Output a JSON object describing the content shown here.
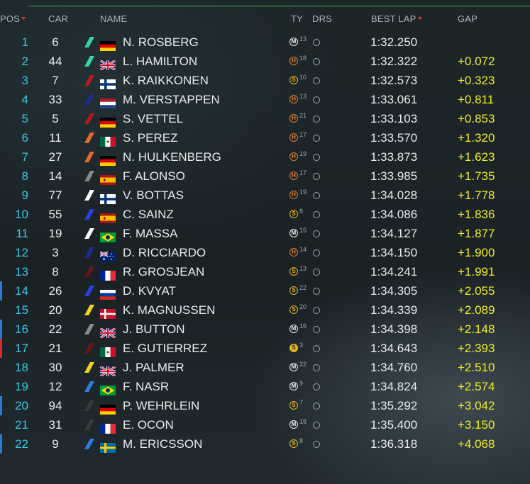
{
  "header": {
    "pos": "POS",
    "car": "CAR",
    "name": "NAME",
    "ty": "TY",
    "drs": "DRS",
    "best_lap": "BEST LAP",
    "gap": "GAP"
  },
  "colors": {
    "pos_text": "#3ec6e0",
    "gap_text": "#f2ec22",
    "header_line": "#3fb35a",
    "sort_arrow": "#e03a3a"
  },
  "rows": [
    {
      "pos": "1",
      "car": "6",
      "name": "N. ROSBERG",
      "flag": "germany-flag",
      "team_color": "#36d3b0",
      "tyre": "M",
      "tyre_laps": "13",
      "best_lap": "1:32.250",
      "gap": "",
      "pit": ""
    },
    {
      "pos": "2",
      "car": "44",
      "name": "L. HAMILTON",
      "flag": "uk-flag",
      "team_color": "#36d3b0",
      "tyre": "H",
      "tyre_laps": "18",
      "best_lap": "1:32.322",
      "gap": "+0.072",
      "pit": ""
    },
    {
      "pos": "3",
      "car": "7",
      "name": "K. RAIKKONEN",
      "flag": "finland-flag",
      "team_color": "#b31b1b",
      "tyre": "S",
      "tyre_laps": "10",
      "best_lap": "1:32.573",
      "gap": "+0.323",
      "pit": ""
    },
    {
      "pos": "4",
      "car": "33",
      "name": "M. VERSTAPPEN",
      "flag": "netherlands-flag",
      "team_color": "#1e2b8f",
      "tyre": "H",
      "tyre_laps": "13",
      "best_lap": "1:33.061",
      "gap": "+0.811",
      "pit": ""
    },
    {
      "pos": "5",
      "car": "5",
      "name": "S. VETTEL",
      "flag": "germany-flag",
      "team_color": "#b31b1b",
      "tyre": "H",
      "tyre_laps": "21",
      "best_lap": "1:33.103",
      "gap": "+0.853",
      "pit": ""
    },
    {
      "pos": "6",
      "car": "11",
      "name": "S. PEREZ",
      "flag": "mexico-flag",
      "team_color": "#e9692c",
      "tyre": "H",
      "tyre_laps": "17",
      "best_lap": "1:33.570",
      "gap": "+1.320",
      "pit": ""
    },
    {
      "pos": "7",
      "car": "27",
      "name": "N. HULKENBERG",
      "flag": "germany-flag",
      "team_color": "#e9692c",
      "tyre": "H",
      "tyre_laps": "19",
      "best_lap": "1:33.873",
      "gap": "+1.623",
      "pit": ""
    },
    {
      "pos": "8",
      "car": "14",
      "name": "F. ALONSO",
      "flag": "spain-flag",
      "team_color": "#8a8a8a",
      "tyre": "H",
      "tyre_laps": "17",
      "best_lap": "1:33.985",
      "gap": "+1.735",
      "pit": ""
    },
    {
      "pos": "9",
      "car": "77",
      "name": "V. BOTTAS",
      "flag": "finland-flag",
      "team_color": "#ffffff",
      "tyre": "H",
      "tyre_laps": "19",
      "best_lap": "1:34.028",
      "gap": "+1.778",
      "pit": ""
    },
    {
      "pos": "10",
      "car": "55",
      "name": "C. SAINZ",
      "flag": "spain-flag",
      "team_color": "#2c3fe0",
      "tyre": "S",
      "tyre_laps": "8",
      "best_lap": "1:34.086",
      "gap": "+1.836",
      "pit": ""
    },
    {
      "pos": "11",
      "car": "19",
      "name": "F. MASSA",
      "flag": "brazil-flag",
      "team_color": "#ffffff",
      "tyre": "M",
      "tyre_laps": "15",
      "best_lap": "1:34.127",
      "gap": "+1.877",
      "pit": ""
    },
    {
      "pos": "12",
      "car": "3",
      "name": "D. RICCIARDO",
      "flag": "australia-flag",
      "team_color": "#1e2b8f",
      "tyre": "H",
      "tyre_laps": "14",
      "best_lap": "1:34.150",
      "gap": "+1.900",
      "pit": ""
    },
    {
      "pos": "13",
      "car": "8",
      "name": "R. GROSJEAN",
      "flag": "france-flag",
      "team_color": "#6d1515",
      "tyre": "S",
      "tyre_laps": "13",
      "best_lap": "1:34.241",
      "gap": "+1.991",
      "pit": ""
    },
    {
      "pos": "14",
      "car": "26",
      "name": "D. KVYAT",
      "flag": "russia-flag",
      "team_color": "#2c3fe0",
      "tyre": "S",
      "tyre_laps": "22",
      "best_lap": "1:34.305",
      "gap": "+2.055",
      "pit": "#2b7bd6"
    },
    {
      "pos": "15",
      "car": "20",
      "name": "K. MAGNUSSEN",
      "flag": "denmark-flag",
      "team_color": "#f5d21e",
      "tyre": "S",
      "tyre_laps": "20",
      "best_lap": "1:34.339",
      "gap": "+2.089",
      "pit": ""
    },
    {
      "pos": "16",
      "car": "22",
      "name": "J. BUTTON",
      "flag": "uk-flag",
      "team_color": "#8a8a8a",
      "tyre": "M",
      "tyre_laps": "16",
      "best_lap": "1:34.398",
      "gap": "+2.148",
      "pit": "#2b7bd6"
    },
    {
      "pos": "17",
      "car": "21",
      "name": "E. GUTIERREZ",
      "flag": "mexico-flag",
      "team_color": "#6d1515",
      "tyre": "S-FILLED",
      "tyre_laps": "3",
      "best_lap": "1:34.643",
      "gap": "+2.393",
      "pit": "#d62b2b"
    },
    {
      "pos": "18",
      "car": "30",
      "name": "J. PALMER",
      "flag": "uk-flag",
      "team_color": "#f5d21e",
      "tyre": "M",
      "tyre_laps": "22",
      "best_lap": "1:34.760",
      "gap": "+2.510",
      "pit": ""
    },
    {
      "pos": "19",
      "car": "12",
      "name": "F. NASR",
      "flag": "brazil-flag",
      "team_color": "#2c7fe0",
      "tyre": "M",
      "tyre_laps": "9",
      "best_lap": "1:34.824",
      "gap": "+2.574",
      "pit": ""
    },
    {
      "pos": "20",
      "car": "94",
      "name": "P. WEHRLEIN",
      "flag": "germany-flag",
      "team_color": "#3a3a3a",
      "tyre": "S",
      "tyre_laps": "7",
      "best_lap": "1:35.292",
      "gap": "+3.042",
      "pit": "#2b7bd6"
    },
    {
      "pos": "21",
      "car": "31",
      "name": "E. OCON",
      "flag": "france-flag",
      "team_color": "#3a3a3a",
      "tyre": "M",
      "tyre_laps": "18",
      "best_lap": "1:35.400",
      "gap": "+3.150",
      "pit": ""
    },
    {
      "pos": "22",
      "car": "9",
      "name": "M. ERICSSON",
      "flag": "sweden-flag",
      "team_color": "#2c7fe0",
      "tyre": "S",
      "tyre_laps": "8",
      "best_lap": "1:36.318",
      "gap": "+4.068",
      "pit": "#2b7bd6"
    }
  ]
}
